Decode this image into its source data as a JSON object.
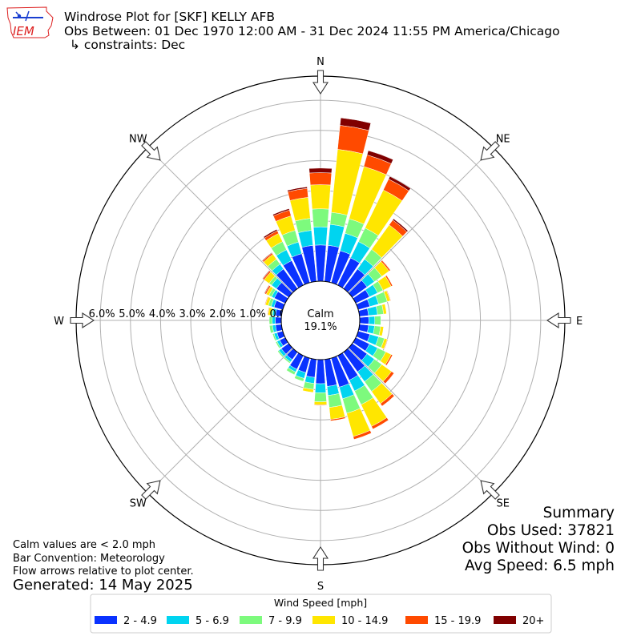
{
  "header": {
    "title_line1": "Windrose Plot for [SKF] KELLY AFB",
    "title_line2": "Obs Between: 01 Dec 1970 12:00 AM - 31 Dec 2024 11:55 PM America/Chicago",
    "title_line3": "↳ constraints: Dec",
    "logo_text": "IEM"
  },
  "compass": [
    "N",
    "NE",
    "E",
    "SE",
    "S",
    "SW",
    "W",
    "NW"
  ],
  "ring_labels": [
    "0.0%",
    "1.0%",
    "2.0%",
    "3.0%",
    "4.0%",
    "5.0%",
    "6.0%"
  ],
  "calm": {
    "label": "Calm",
    "value": "19.1%"
  },
  "footnotes": {
    "line1": "Calm values are < 2.0 mph",
    "line2": "Bar Convention: Meteorology",
    "line3": "Flow arrows relative to plot center.",
    "generated": "Generated: 14 May 2025"
  },
  "summary": {
    "title": "Summary",
    "obs_used": "Obs Used: 37821",
    "obs_without_wind": "Obs Without Wind: 0",
    "avg_speed": "Avg Speed: 6.5 mph"
  },
  "chart_data": {
    "type": "windrose",
    "units": "percent of observations",
    "rlim": [
      0,
      6.8
    ],
    "ring_ticks": [
      0,
      1,
      2,
      3,
      4,
      5,
      6
    ],
    "calm_percent": 19.1,
    "legend_title": "Wind Speed [mph]",
    "bins": [
      {
        "name": "2 - 4.9",
        "color": "#0a32ff"
      },
      {
        "name": "5 - 6.9",
        "color": "#00d4f0"
      },
      {
        "name": "7 - 9.9",
        "color": "#7dfa7d"
      },
      {
        "name": "10 - 14.9",
        "color": "#ffe600"
      },
      {
        "name": "15 - 19.9",
        "color": "#ff4a00"
      },
      {
        "name": "20+",
        "color": "#800000"
      }
    ],
    "directions": [
      0,
      10,
      20,
      30,
      40,
      50,
      60,
      70,
      80,
      90,
      100,
      110,
      120,
      130,
      140,
      150,
      160,
      170,
      180,
      190,
      200,
      210,
      220,
      230,
      240,
      250,
      260,
      270,
      280,
      290,
      300,
      310,
      320,
      330,
      340,
      350
    ],
    "values": [
      [
        1.2,
        0.6,
        0.6,
        0.8,
        0.4,
        0.15
      ],
      [
        1.2,
        0.7,
        0.4,
        2.1,
        0.8,
        0.25
      ],
      [
        1.1,
        0.6,
        0.5,
        1.8,
        0.4,
        0.15
      ],
      [
        1.0,
        0.6,
        0.5,
        1.4,
        0.4,
        0.1
      ],
      [
        0.8,
        0.4,
        0.4,
        1.0,
        0.2,
        0.05
      ],
      [
        0.6,
        0.3,
        0.3,
        0.3,
        0.05,
        0.01
      ],
      [
        0.5,
        0.3,
        0.2,
        0.3,
        0.05,
        0.0
      ],
      [
        0.4,
        0.3,
        0.3,
        0.1,
        0.02,
        0.0
      ],
      [
        0.3,
        0.3,
        0.2,
        0.1,
        0.0,
        0.0
      ],
      [
        0.3,
        0.2,
        0.2,
        0.0,
        0.0,
        0.0
      ],
      [
        0.3,
        0.2,
        0.2,
        0.1,
        0.0,
        0.0
      ],
      [
        0.4,
        0.3,
        0.2,
        0.1,
        0.02,
        0.0
      ],
      [
        0.5,
        0.3,
        0.3,
        0.2,
        0.05,
        0.0
      ],
      [
        0.6,
        0.3,
        0.3,
        0.4,
        0.1,
        0.0
      ],
      [
        0.8,
        0.4,
        0.4,
        0.5,
        0.1,
        0.0
      ],
      [
        0.9,
        0.4,
        0.5,
        0.8,
        0.1,
        0.0
      ],
      [
        1.0,
        0.4,
        0.5,
        0.8,
        0.1,
        0.0
      ],
      [
        0.9,
        0.3,
        0.4,
        0.4,
        0.05,
        0.0
      ],
      [
        0.8,
        0.3,
        0.3,
        0.1,
        0.02,
        0.0
      ],
      [
        0.6,
        0.2,
        0.2,
        0.1,
        0.0,
        0.0
      ],
      [
        0.5,
        0.2,
        0.1,
        0.0,
        0.0,
        0.0
      ],
      [
        0.5,
        0.1,
        0.1,
        0.0,
        0.0,
        0.0
      ],
      [
        0.3,
        0.1,
        0.05,
        0.0,
        0.0,
        0.0
      ],
      [
        0.3,
        0.1,
        0.05,
        0.0,
        0.0,
        0.0
      ],
      [
        0.2,
        0.1,
        0.05,
        0.0,
        0.0,
        0.0
      ],
      [
        0.2,
        0.1,
        0.05,
        0.0,
        0.0,
        0.0
      ],
      [
        0.2,
        0.1,
        0.1,
        0.0,
        0.0,
        0.0
      ],
      [
        0.2,
        0.1,
        0.1,
        0.0,
        0.0,
        0.0
      ],
      [
        0.2,
        0.1,
        0.05,
        0.1,
        0.02,
        0.0
      ],
      [
        0.3,
        0.1,
        0.1,
        0.1,
        0.02,
        0.0
      ],
      [
        0.4,
        0.1,
        0.1,
        0.1,
        0.05,
        0.02
      ],
      [
        0.5,
        0.2,
        0.1,
        0.2,
        0.05,
        0.02
      ],
      [
        0.8,
        0.2,
        0.2,
        0.2,
        0.05,
        0.02
      ],
      [
        0.9,
        0.4,
        0.3,
        0.3,
        0.1,
        0.05
      ],
      [
        1.0,
        0.4,
        0.4,
        0.5,
        0.2,
        0.05
      ],
      [
        1.2,
        0.5,
        0.4,
        0.7,
        0.3,
        0.05
      ]
    ]
  }
}
